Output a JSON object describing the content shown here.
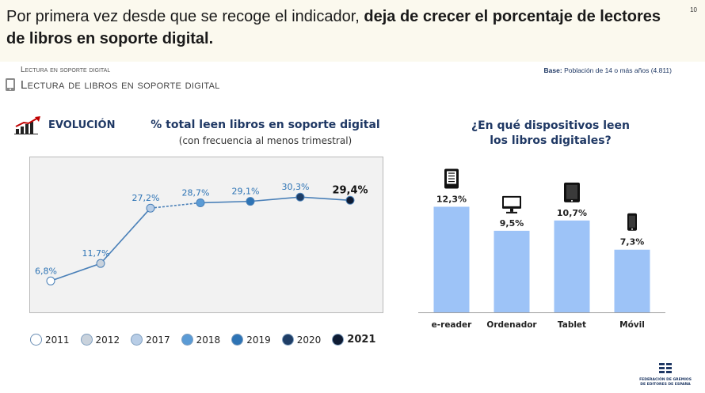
{
  "header": {
    "headline_plain": "Por primera vez desde que se recoge el indicador, ",
    "headline_bold": "deja de crecer el porcentaje de lectores de libros en soporte digital.",
    "page_number": "10"
  },
  "section": {
    "small_title": "Lectura en soporte digital",
    "title": "Lectura de libros en soporte digital",
    "base_label": "Base:",
    "base_text": " Población de 14 o más años (4.811)"
  },
  "evolution_label": "EVOLUCIÓN",
  "chart_data": [
    {
      "type": "line",
      "title": "% total leen libros en soporte digital",
      "subtitle": "(con frecuencia al menos trimestral)",
      "x": [
        "2011",
        "2012",
        "2017",
        "2018",
        "2019",
        "2020",
        "2021"
      ],
      "values": [
        6.8,
        11.7,
        27.2,
        28.7,
        29.1,
        30.3,
        29.4
      ],
      "labels": [
        "6,8%",
        "11,7%",
        "27,2%",
        "28,7%",
        "29,1%",
        "30,3%",
        "29,4%"
      ],
      "colors": [
        "#ffffff",
        "#c9d2dc",
        "#b8cde6",
        "#5b9bd5",
        "#2e74b5",
        "#1f3e66",
        "#0e1b33"
      ],
      "dashed_segment": [
        "2017",
        "2018"
      ],
      "ylim": [
        0,
        35
      ],
      "legend": [
        "2011",
        "2012",
        "2017",
        "2018",
        "2019",
        "2020",
        "2021"
      ],
      "legend_position": "bottom"
    },
    {
      "type": "bar",
      "title_line1": "¿En qué dispositivos leen",
      "title_line2": "los libros digitales?",
      "categories": [
        "e-reader",
        "Ordenador",
        "Tablet",
        "Móvil"
      ],
      "values": [
        12.3,
        9.5,
        10.7,
        7.3
      ],
      "labels": [
        "12,3%",
        "9,5%",
        "10,7%",
        "7,3%"
      ],
      "icons": [
        "ereader-icon",
        "monitor-icon",
        "tablet-icon",
        "mobile-icon"
      ],
      "bar_color": "#9dc3f7",
      "ylim": [
        0,
        14
      ]
    }
  ],
  "logo": {
    "line1": "FEDERACIÓN DE GREMIOS",
    "line2": "DE EDITORES DE ESPAÑA"
  },
  "colors": {
    "header_bg": "#fbf9ee",
    "navy": "#1f3864",
    "line": "#4a80b8"
  }
}
